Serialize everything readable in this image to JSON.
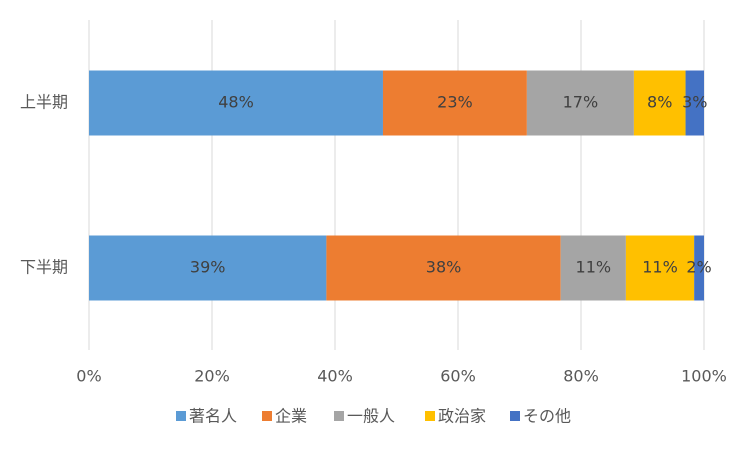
{
  "chart_data": {
    "type": "stacked-barh",
    "categories": [
      "上半期",
      "下半期"
    ],
    "series": [
      {
        "name": "著名人",
        "color": "#5b9bd5",
        "values": [
          47.8,
          38.6
        ],
        "value_labels": [
          "48%",
          "39%"
        ]
      },
      {
        "name": "企業",
        "color": "#ed7d31",
        "values": [
          23.4,
          38.1
        ],
        "value_labels": [
          "23%",
          "38%"
        ]
      },
      {
        "name": "一般人",
        "color": "#a5a5a5",
        "values": [
          17.4,
          10.6
        ],
        "value_labels": [
          "17%",
          "11%"
        ]
      },
      {
        "name": "政治家",
        "color": "#ffc000",
        "values": [
          8.4,
          11.1
        ],
        "value_labels": [
          "8%",
          "11%"
        ]
      },
      {
        "name": "その他",
        "color": "#4472c4",
        "values": [
          3.0,
          1.6
        ],
        "value_labels": [
          "3%",
          "2%"
        ]
      }
    ],
    "xlim": [
      0,
      100
    ],
    "xticks": [
      {
        "value": 0,
        "label": "0%"
      },
      {
        "value": 20,
        "label": "20%"
      },
      {
        "value": 40,
        "label": "40%"
      },
      {
        "value": 60,
        "label": "60%"
      },
      {
        "value": 80,
        "label": "80%"
      },
      {
        "value": 100,
        "label": "100%"
      }
    ],
    "grid": true,
    "legend": "bottom"
  }
}
